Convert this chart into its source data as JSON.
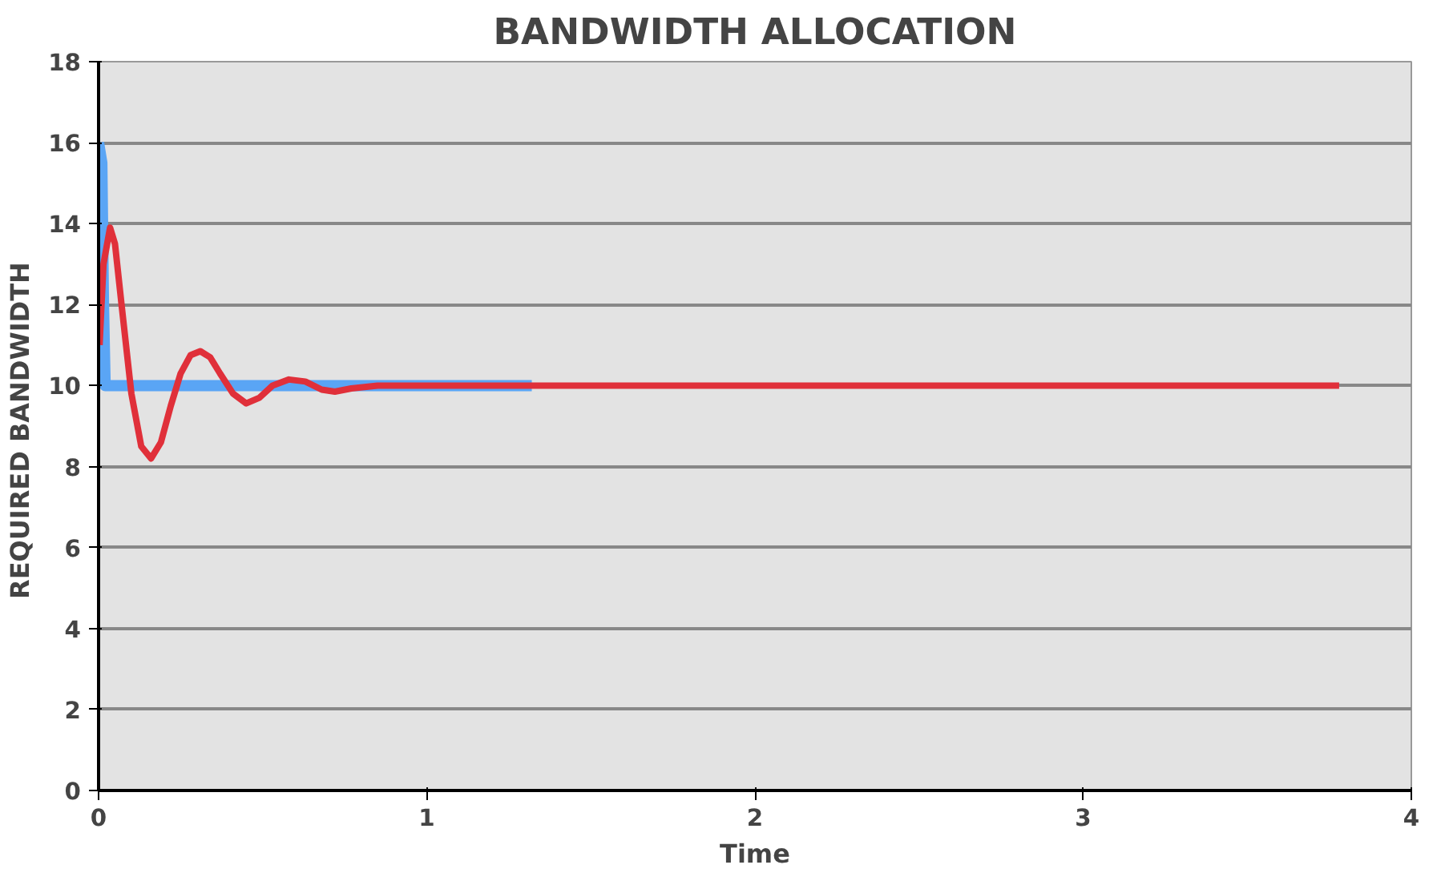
{
  "chart_data": {
    "type": "line",
    "title": "BANDWIDTH ALLOCATION",
    "xlabel": "Time",
    "ylabel": "REQUIRED  BANDWIDTH",
    "xlim": [
      0,
      4
    ],
    "xticks": [
      0,
      1,
      2,
      3,
      4
    ],
    "ylim": [
      0,
      18
    ],
    "yticks": [
      0,
      2,
      4,
      6,
      8,
      10,
      12,
      14,
      16,
      18
    ],
    "grid": "y",
    "series": [
      {
        "color": "#5aa5f5",
        "x": [
          0,
          0.01,
          0.015,
          0.02,
          0.1,
          0.5,
          1.0,
          1.32
        ],
        "values": [
          16,
          15.5,
          12,
          10,
          10,
          10,
          10,
          10
        ]
      },
      {
        "color": "#e0303a",
        "x": [
          0.003,
          0.015,
          0.035,
          0.05,
          0.07,
          0.1,
          0.13,
          0.16,
          0.19,
          0.22,
          0.25,
          0.28,
          0.31,
          0.34,
          0.37,
          0.41,
          0.45,
          0.49,
          0.53,
          0.58,
          0.63,
          0.68,
          0.72,
          0.77,
          0.85,
          1.0,
          2.0,
          3.78
        ],
        "values": [
          11.0,
          13.0,
          13.9,
          13.5,
          12.0,
          9.8,
          8.5,
          8.2,
          8.6,
          9.5,
          10.3,
          10.75,
          10.85,
          10.7,
          10.3,
          9.8,
          9.56,
          9.7,
          10.0,
          10.15,
          10.1,
          9.9,
          9.85,
          9.93,
          10.0,
          10.0,
          10.0,
          10.0
        ]
      }
    ]
  }
}
